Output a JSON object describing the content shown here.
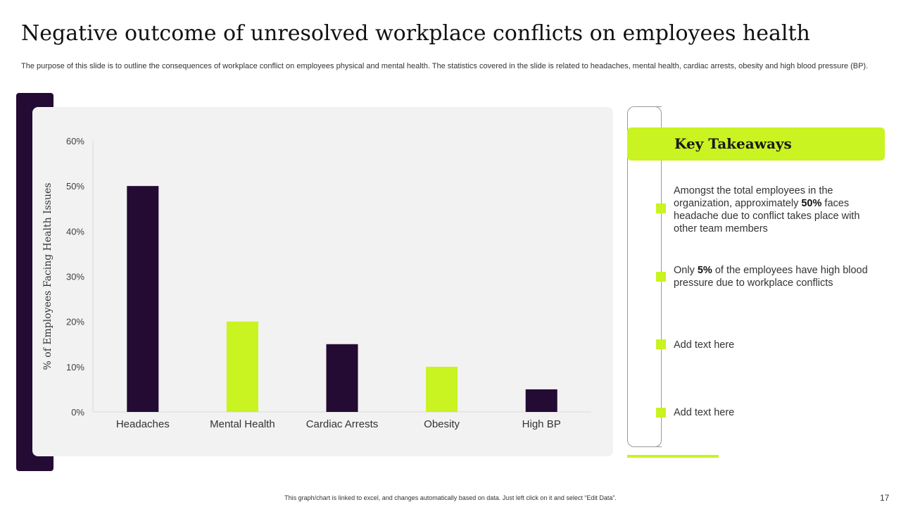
{
  "slide": {
    "title": "Negative outcome of unresolved workplace conflicts on employees health",
    "subtitle": "The purpose of this slide is to outline the consequences of workplace conflict on employees physical and mental health. The statistics covered in the slide is related to headaches, mental health, cardiac arrests, obesity and high blood pressure (BP).",
    "footer_note": "This graph/chart is linked to excel, and changes automatically based on data. Just left click on it and select “Edit Data”.",
    "page_number": "17"
  },
  "colors": {
    "dark": "#230b33",
    "accent": "#c9f321",
    "panel": "#f2f2f2"
  },
  "chart_data": {
    "type": "bar",
    "title": "",
    "xlabel": "",
    "ylabel": "% of Employees Facing Health Issues",
    "categories": [
      "Headaches",
      "Mental Health",
      "Cardiac Arrests",
      "Obesity",
      "High BP"
    ],
    "values": [
      50,
      20,
      15,
      10,
      5
    ],
    "bar_colors": [
      "#230b33",
      "#c9f321",
      "#230b33",
      "#c9f321",
      "#230b33"
    ],
    "ylim": [
      0,
      60
    ],
    "yticks": [
      0,
      10,
      20,
      30,
      40,
      50,
      60
    ],
    "ytick_labels": [
      "0%",
      "10%",
      "20%",
      "30%",
      "40%",
      "50%",
      "60%"
    ],
    "grid": false,
    "legend": "none"
  },
  "takeaways": {
    "title": "Key Takeaways",
    "items": [
      {
        "before": "Amongst the total employees in the organization, approximately ",
        "bold": "50%",
        "after": " faces headache due to conflict takes place with other team members"
      },
      {
        "before": "Only ",
        "bold": "5%",
        "after": " of the employees have high blood pressure due to workplace conflicts"
      },
      {
        "text": "Add text here"
      },
      {
        "text": "Add text here"
      }
    ]
  }
}
